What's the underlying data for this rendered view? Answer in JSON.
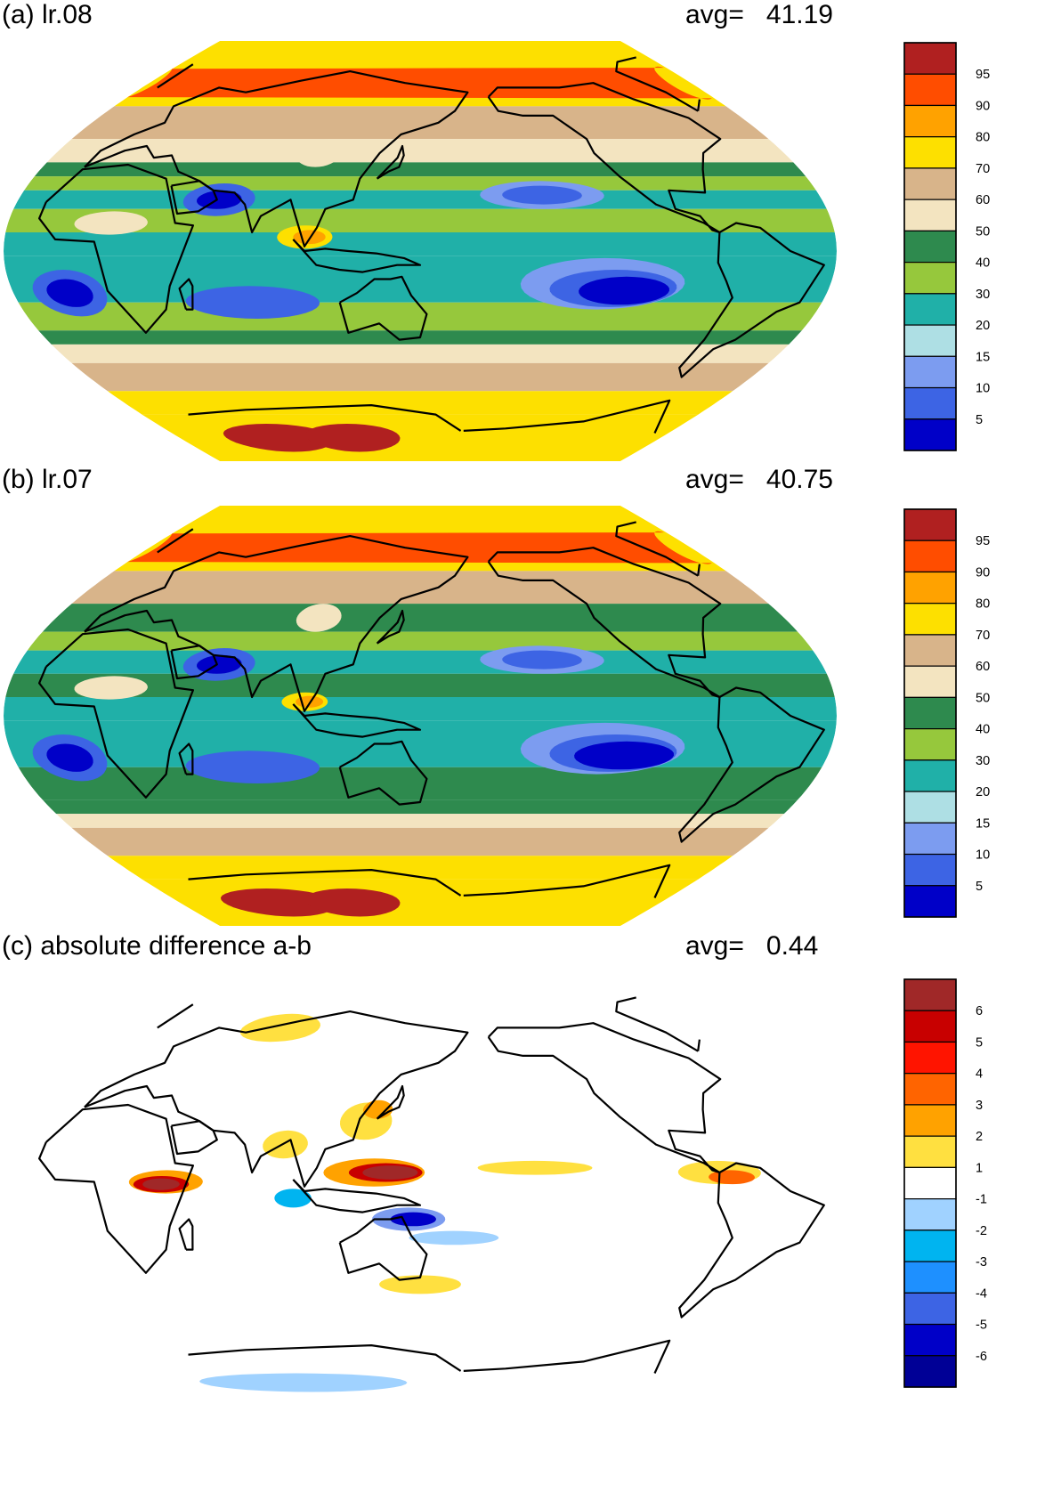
{
  "panels": [
    {
      "id": "a",
      "title": "(a) lr.08",
      "avg_label": "avg=",
      "avg_value": "41.19",
      "colorbar": {
        "colors": [
          "#0000c8",
          "#3d64e4",
          "#7c9cf0",
          "#aedfe4",
          "#20b0a8",
          "#96c83c",
          "#2e8a4e",
          "#f3e4c0",
          "#d8b48a",
          "#fde000",
          "#ffa200",
          "#ff4d00",
          "#b02020"
        ],
        "tick_labels": [
          "5",
          "10",
          "15",
          "20",
          "30",
          "40",
          "50",
          "60",
          "70",
          "80",
          "90",
          "95"
        ]
      },
      "bands": [
        {
          "lat_from": 90,
          "lat_to": 62,
          "color": "#fde000"
        },
        {
          "lat_from": 62,
          "lat_to": 48,
          "color": "#d8b48a"
        },
        {
          "lat_from": 48,
          "lat_to": 38,
          "color": "#f3e4c0"
        },
        {
          "lat_from": 38,
          "lat_to": 32,
          "color": "#2e8a4e"
        },
        {
          "lat_from": 32,
          "lat_to": 26,
          "color": "#96c83c"
        },
        {
          "lat_from": 26,
          "lat_to": 18,
          "color": "#20b0a8"
        },
        {
          "lat_from": 18,
          "lat_to": 8,
          "color": "#96c83c"
        },
        {
          "lat_from": 8,
          "lat_to": -2,
          "color": "#20b0a8"
        },
        {
          "lat_from": -2,
          "lat_to": -22,
          "color": "#20b0a8"
        },
        {
          "lat_from": -22,
          "lat_to": -34,
          "color": "#96c83c"
        },
        {
          "lat_from": -34,
          "lat_to": -40,
          "color": "#2e8a4e"
        },
        {
          "lat_from": -40,
          "lat_to": -48,
          "color": "#f3e4c0"
        },
        {
          "lat_from": -48,
          "lat_to": -60,
          "color": "#d8b48a"
        },
        {
          "lat_from": -60,
          "lat_to": -70,
          "color": "#fde000"
        },
        {
          "lat_from": -70,
          "lat_to": -90,
          "color": "#fde000"
        }
      ],
      "blobs": [
        {
          "lon": -130,
          "lat": -14,
          "rlon": 36,
          "rlat": 11,
          "color": "#7c9cf0"
        },
        {
          "lon": -125,
          "lat": -16,
          "rlon": 28,
          "rlat": 8,
          "color": "#3d64e4"
        },
        {
          "lon": -120,
          "lat": -17,
          "rlon": 20,
          "rlat": 6,
          "color": "#0000c8"
        },
        {
          "lon": -155,
          "lat": 24,
          "rlon": 28,
          "rlat": 6,
          "color": "#7c9cf0"
        },
        {
          "lon": -155,
          "lat": 24,
          "rlon": 18,
          "rlat": 4,
          "color": "#3d64e4"
        },
        {
          "lon": -5,
          "lat": -18,
          "rlon": 16,
          "rlat": 10,
          "color": "#3d64e4"
        },
        {
          "lon": -5,
          "lat": -18,
          "rlon": 10,
          "rlat": 6,
          "color": "#0000c8"
        },
        {
          "lon": 60,
          "lat": 22,
          "rlon": 16,
          "rlat": 7,
          "color": "#3d64e4"
        },
        {
          "lon": 60,
          "lat": 22,
          "rlon": 10,
          "rlat": 4,
          "color": "#0000c8"
        },
        {
          "lon": 75,
          "lat": -22,
          "rlon": 30,
          "rlat": 7,
          "color": "#3d64e4"
        },
        {
          "lon": 100,
          "lat": 6,
          "rlon": 12,
          "rlat": 5,
          "color": "#fde000"
        },
        {
          "lon": 102,
          "lat": 6,
          "rlon": 7,
          "rlat": 3,
          "color": "#ffa200"
        },
        {
          "lon": 100,
          "lat": 42,
          "rlon": 11,
          "rlat": 6,
          "color": "#f3e4c0"
        },
        {
          "lon": 45,
          "lat": -80,
          "rlon": 40,
          "rlat": 6,
          "color": "#b02020"
        },
        {
          "lon": 100,
          "lat": -80,
          "rlon": 35,
          "rlat": 6,
          "color": "#b02020"
        },
        {
          "lon": -35,
          "lat": 72,
          "rlon": 10,
          "rlat": 7,
          "color": "#ff4d00"
        },
        {
          "lon": 15,
          "lat": 12,
          "rlon": 16,
          "rlat": 5,
          "color": "#f3e4c0"
        }
      ]
    },
    {
      "id": "b",
      "title": "(b) lr.07",
      "avg_label": "avg=",
      "avg_value": "40.75",
      "colorbar": {
        "colors": [
          "#0000c8",
          "#3d64e4",
          "#7c9cf0",
          "#aedfe4",
          "#20b0a8",
          "#96c83c",
          "#2e8a4e",
          "#f3e4c0",
          "#d8b48a",
          "#fde000",
          "#ffa200",
          "#ff4d00",
          "#b02020"
        ],
        "tick_labels": [
          "5",
          "10",
          "15",
          "20",
          "30",
          "40",
          "50",
          "60",
          "70",
          "80",
          "90",
          "95"
        ]
      },
      "bands": [
        {
          "lat_from": 90,
          "lat_to": 62,
          "color": "#fde000"
        },
        {
          "lat_from": 62,
          "lat_to": 48,
          "color": "#d8b48a"
        },
        {
          "lat_from": 48,
          "lat_to": 36,
          "color": "#2e8a4e"
        },
        {
          "lat_from": 36,
          "lat_to": 28,
          "color": "#96c83c"
        },
        {
          "lat_from": 28,
          "lat_to": 18,
          "color": "#20b0a8"
        },
        {
          "lat_from": 18,
          "lat_to": 8,
          "color": "#2e8a4e"
        },
        {
          "lat_from": 8,
          "lat_to": -2,
          "color": "#20b0a8"
        },
        {
          "lat_from": -2,
          "lat_to": -22,
          "color": "#20b0a8"
        },
        {
          "lat_from": -22,
          "lat_to": -36,
          "color": "#2e8a4e"
        },
        {
          "lat_from": -36,
          "lat_to": -42,
          "color": "#2e8a4e"
        },
        {
          "lat_from": -42,
          "lat_to": -48,
          "color": "#f3e4c0"
        },
        {
          "lat_from": -48,
          "lat_to": -60,
          "color": "#d8b48a"
        },
        {
          "lat_from": -60,
          "lat_to": -70,
          "color": "#fde000"
        },
        {
          "lat_from": -70,
          "lat_to": -90,
          "color": "#fde000"
        }
      ],
      "blobs": [
        {
          "lon": -130,
          "lat": -14,
          "rlon": 36,
          "rlat": 11,
          "color": "#7c9cf0"
        },
        {
          "lon": -125,
          "lat": -16,
          "rlon": 28,
          "rlat": 8,
          "color": "#3d64e4"
        },
        {
          "lon": -120,
          "lat": -17,
          "rlon": 22,
          "rlat": 6,
          "color": "#0000c8"
        },
        {
          "lon": -155,
          "lat": 24,
          "rlon": 28,
          "rlat": 6,
          "color": "#7c9cf0"
        },
        {
          "lon": -155,
          "lat": 24,
          "rlon": 18,
          "rlat": 4,
          "color": "#3d64e4"
        },
        {
          "lon": -5,
          "lat": -18,
          "rlon": 16,
          "rlat": 10,
          "color": "#3d64e4"
        },
        {
          "lon": -5,
          "lat": -18,
          "rlon": 10,
          "rlat": 6,
          "color": "#0000c8"
        },
        {
          "lon": 60,
          "lat": 22,
          "rlon": 16,
          "rlat": 7,
          "color": "#3d64e4"
        },
        {
          "lon": 60,
          "lat": 22,
          "rlon": 10,
          "rlat": 4,
          "color": "#0000c8"
        },
        {
          "lon": 75,
          "lat": -22,
          "rlon": 30,
          "rlat": 7,
          "color": "#3d64e4"
        },
        {
          "lon": 100,
          "lat": 6,
          "rlon": 10,
          "rlat": 4,
          "color": "#fde000"
        },
        {
          "lon": 102,
          "lat": 6,
          "rlon": 6,
          "rlat": 2.5,
          "color": "#ffa200"
        },
        {
          "lon": 100,
          "lat": 42,
          "rlon": 11,
          "rlat": 6,
          "color": "#f3e4c0"
        },
        {
          "lon": 45,
          "lat": -80,
          "rlon": 42,
          "rlat": 6,
          "color": "#b02020"
        },
        {
          "lon": 100,
          "lat": -80,
          "rlon": 35,
          "rlat": 6,
          "color": "#b02020"
        },
        {
          "lon": -35,
          "lat": 72,
          "rlon": 10,
          "rlat": 7,
          "color": "#ff4d00"
        },
        {
          "lon": 15,
          "lat": 12,
          "rlon": 16,
          "rlat": 5,
          "color": "#f3e4c0"
        }
      ]
    },
    {
      "id": "c",
      "title": "(c) absolute difference a-b",
      "avg_label": "avg=",
      "avg_value": "0.44",
      "colorbar": {
        "colors": [
          "#000096",
          "#0000c8",
          "#3d64e4",
          "#1e90ff",
          "#00b4f0",
          "#a0d2ff",
          "#ffffff",
          "#ffe040",
          "#ffa200",
          "#ff6400",
          "#ff1400",
          "#c80000",
          "#a02828"
        ],
        "tick_labels": [
          "-6",
          "-5",
          "-4",
          "-3",
          "-2",
          "-1",
          "1",
          "2",
          "3",
          "4",
          "5",
          "6"
        ]
      },
      "bands": [],
      "blobs": [
        {
          "lon": 130,
          "lat": 8,
          "rlon": 22,
          "rlat": 6,
          "color": "#ffa200"
        },
        {
          "lon": 135,
          "lat": 8,
          "rlon": 16,
          "rlat": 4,
          "color": "#c80000"
        },
        {
          "lon": 137,
          "lat": 8,
          "rlon": 12,
          "rlat": 3,
          "color": "#a02828"
        },
        {
          "lon": 40,
          "lat": 4,
          "rlon": 16,
          "rlat": 5,
          "color": "#ffa200"
        },
        {
          "lon": 38,
          "lat": 3,
          "rlon": 12,
          "rlat": 3.5,
          "color": "#c80000"
        },
        {
          "lon": 38,
          "lat": 3,
          "rlon": 8,
          "rlat": 2.5,
          "color": "#a02828"
        },
        {
          "lon": 145,
          "lat": -12,
          "rlon": 16,
          "rlat": 5,
          "color": "#7c9cf0"
        },
        {
          "lon": 147,
          "lat": -12,
          "rlon": 10,
          "rlat": 3,
          "color": "#0000c8"
        },
        {
          "lon": 125,
          "lat": 30,
          "rlon": 12,
          "rlat": 8,
          "color": "#ffe040"
        },
        {
          "lon": 130,
          "lat": 35,
          "rlon": 7,
          "rlat": 4,
          "color": "#ffa200"
        },
        {
          "lon": -80,
          "lat": 8,
          "rlon": 18,
          "rlat": 5,
          "color": "#ffe040"
        },
        {
          "lon": -75,
          "lat": 6,
          "rlon": 10,
          "rlat": 3,
          "color": "#ff6400"
        },
        {
          "lon": -160,
          "lat": 10,
          "rlon": 25,
          "rlat": 3,
          "color": "#ffe040"
        },
        {
          "lon": 60,
          "lat": 70,
          "rlon": 25,
          "rlat": 6,
          "color": "#ffe040"
        },
        {
          "lon": 90,
          "lat": 20,
          "rlon": 10,
          "rlat": 6,
          "color": "#ffe040"
        },
        {
          "lon": 165,
          "lat": -20,
          "rlon": 20,
          "rlat": 3,
          "color": "#a0d2ff"
        },
        {
          "lon": 60,
          "lat": -82,
          "rlon": 80,
          "rlat": 4,
          "color": "#a0d2ff"
        },
        {
          "lon": 95,
          "lat": -3,
          "rlon": 8,
          "rlat": 4,
          "color": "#00b4f0"
        },
        {
          "lon": 150,
          "lat": -40,
          "rlon": 20,
          "rlat": 4,
          "color": "#ffe040"
        }
      ]
    }
  ]
}
